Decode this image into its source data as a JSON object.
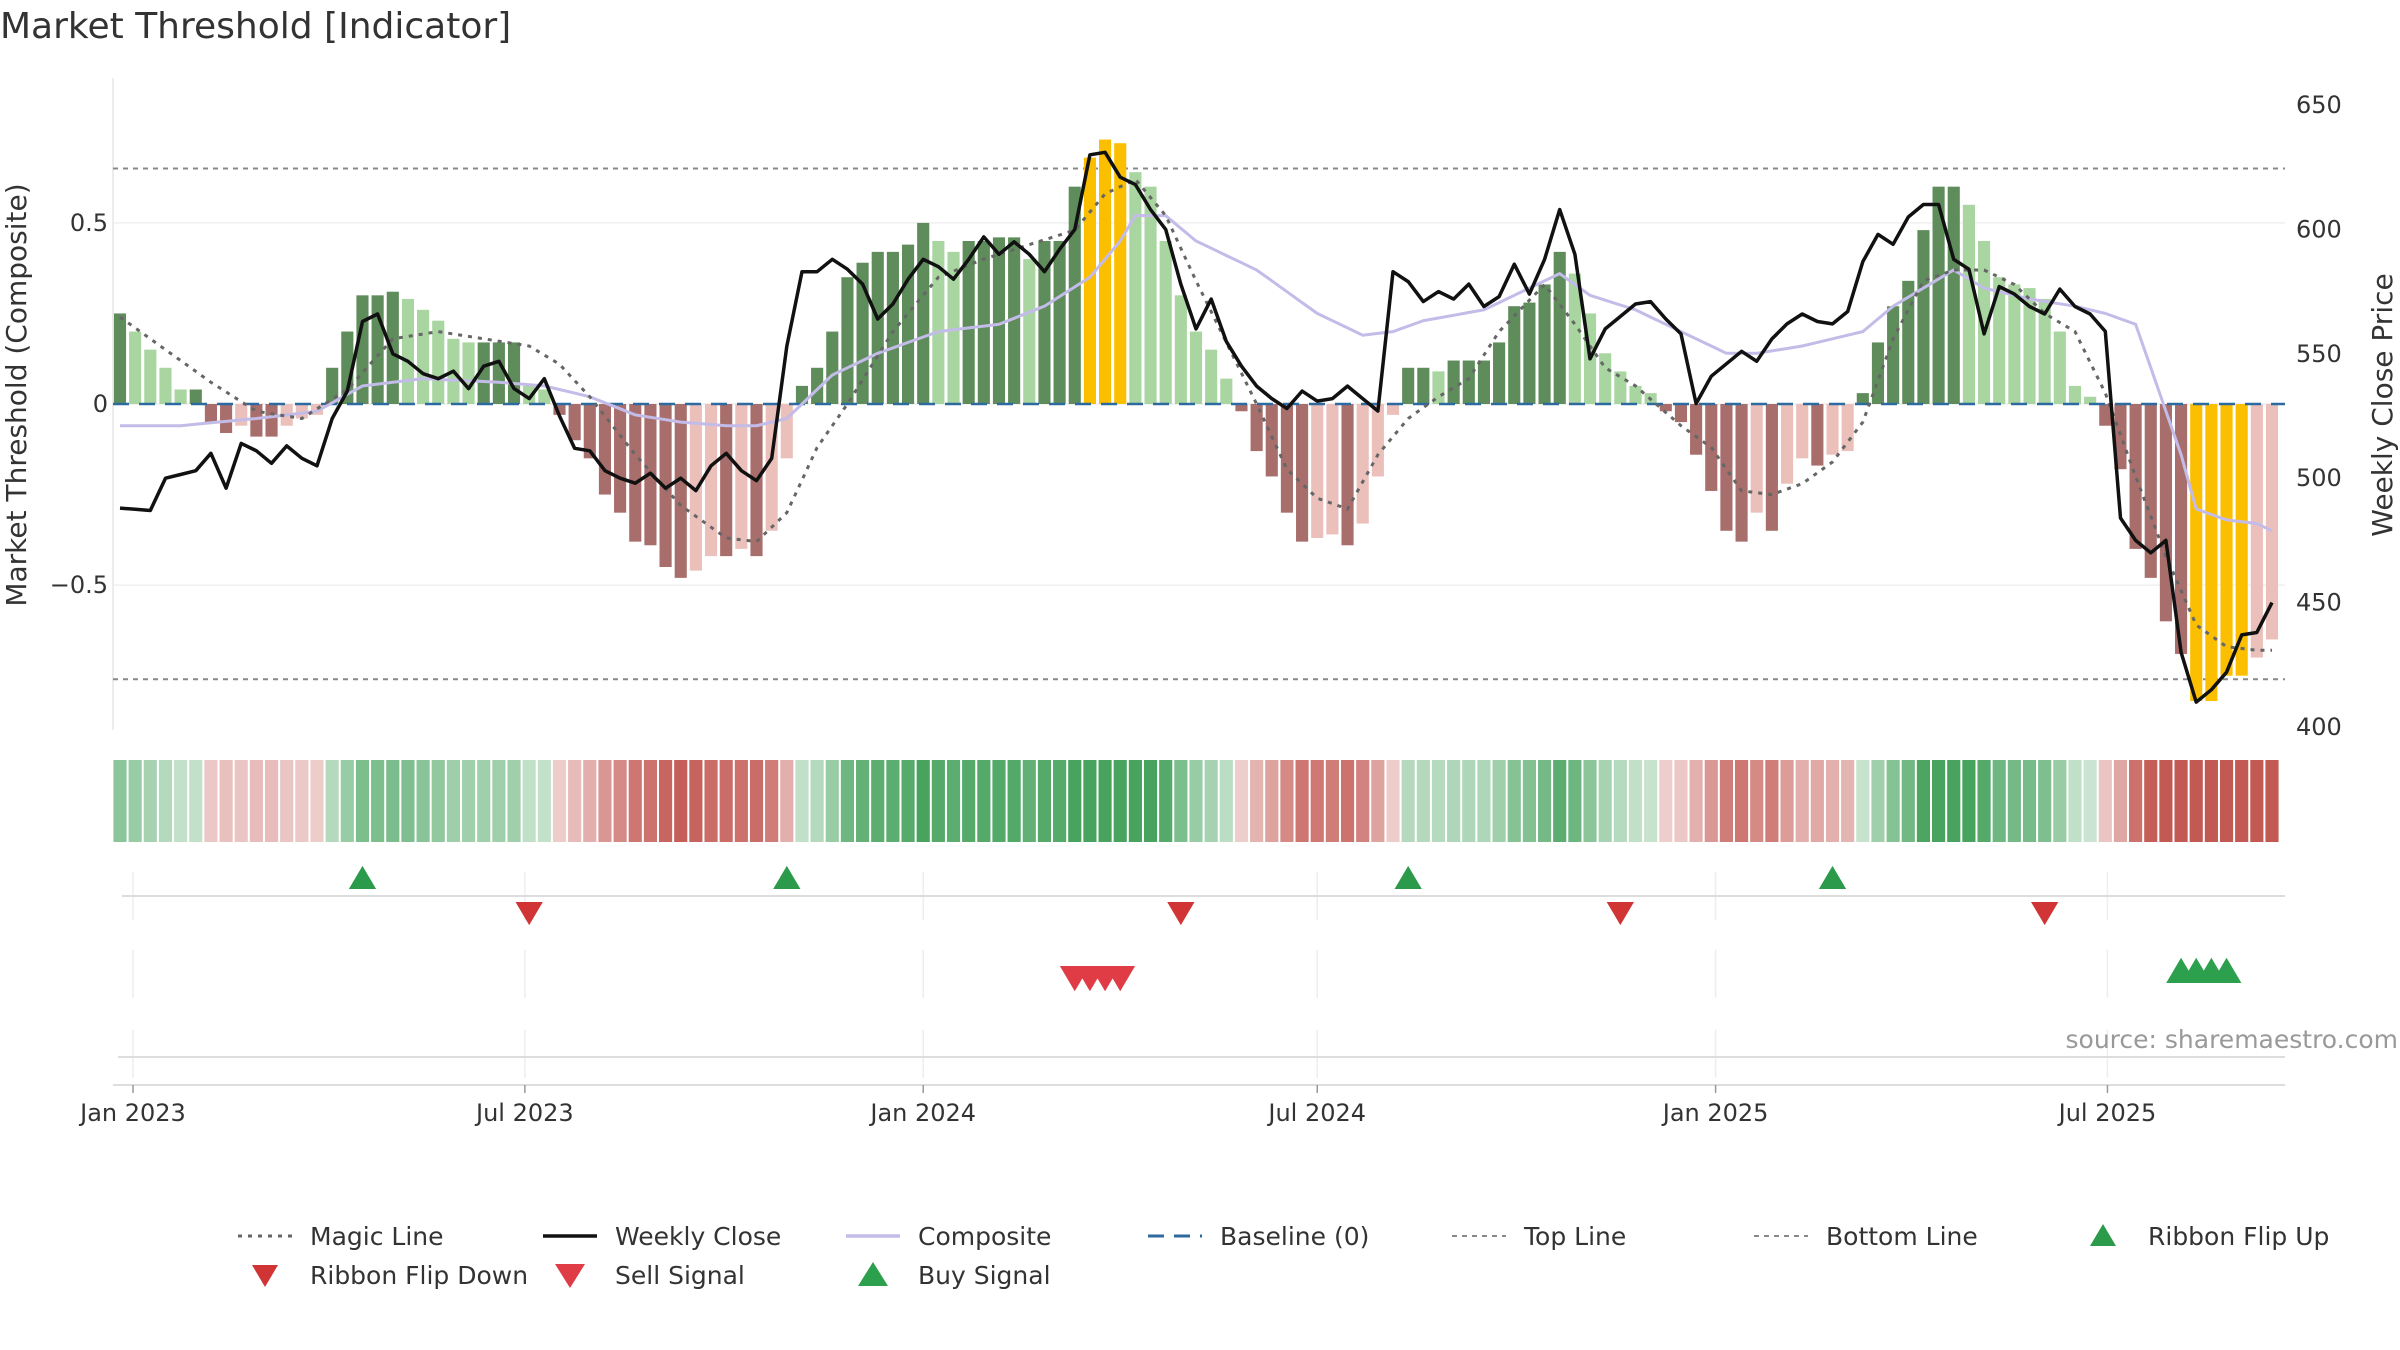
{
  "colors": {
    "pos_dark": "#5e8c5a",
    "pos_light": "#a8d5a0",
    "neg_dark": "#a86e6b",
    "neg_light": "#ebc0bb",
    "extreme": "#fbbf00",
    "composite": "#c3bbe8",
    "magic": "#666666",
    "close": "#111111",
    "baseline": "#2d6a9f",
    "guide": "#888888",
    "buy": "#2ca04c",
    "sell": "#e03c46",
    "flip_up": "#2b9a4a",
    "flip_down": "#d03434"
  },
  "chart_data": {
    "type": "bar",
    "title": "Market Threshold [Indicator]",
    "ylabel": "Market Threshold (Composite)",
    "y2label": "Weekly Close Price",
    "ylim": [
      -0.9,
      0.9
    ],
    "y2lim": [
      400,
      650
    ],
    "yticks": [
      0.5,
      0,
      -0.5
    ],
    "ytick_labels": [
      "0.5",
      "0",
      "−0.5"
    ],
    "y2ticks": [
      650,
      600,
      550,
      500,
      450,
      400
    ],
    "top_line": 0.65,
    "bottom_line": -0.76,
    "baseline": 0,
    "weeks": 143,
    "start_date": "2022-12-26",
    "x_ticks": [
      {
        "label": "Jan 2023",
        "date": "2023-01-01"
      },
      {
        "label": "Jul 2023",
        "date": "2023-07-01"
      },
      {
        "label": "Jan 2024",
        "date": "2024-01-01"
      },
      {
        "label": "Jul 2024",
        "date": "2024-07-01"
      },
      {
        "label": "Jan 2025",
        "date": "2025-01-01"
      },
      {
        "label": "Jul 2025",
        "date": "2025-07-01"
      }
    ],
    "histogram_anchors": [
      [
        0,
        0.25
      ],
      [
        1,
        0.2
      ],
      [
        2,
        0.15
      ],
      [
        3,
        0.1
      ],
      [
        4,
        0.04
      ],
      [
        5,
        0.04
      ],
      [
        6,
        -0.05
      ],
      [
        7,
        -0.08
      ],
      [
        8,
        -0.06
      ],
      [
        9,
        -0.09
      ],
      [
        10,
        -0.09
      ],
      [
        11,
        -0.06
      ],
      [
        12,
        -0.04
      ],
      [
        13,
        -0.03
      ],
      [
        14,
        0.1
      ],
      [
        15,
        0.2
      ],
      [
        16,
        0.3
      ],
      [
        17,
        0.3
      ],
      [
        18,
        0.31
      ],
      [
        19,
        0.29
      ],
      [
        20,
        0.26
      ],
      [
        21,
        0.23
      ],
      [
        22,
        0.18
      ],
      [
        23,
        0.17
      ],
      [
        24,
        0.17
      ],
      [
        25,
        0.17
      ],
      [
        26,
        0.17
      ],
      [
        27,
        0.05
      ],
      [
        28,
        0.04
      ],
      [
        29,
        -0.03
      ],
      [
        30,
        -0.1
      ],
      [
        31,
        -0.15
      ],
      [
        32,
        -0.25
      ],
      [
        33,
        -0.3
      ],
      [
        34,
        -0.38
      ],
      [
        35,
        -0.39
      ],
      [
        36,
        -0.45
      ],
      [
        37,
        -0.48
      ],
      [
        38,
        -0.46
      ],
      [
        39,
        -0.42
      ],
      [
        40,
        -0.42
      ],
      [
        41,
        -0.4
      ],
      [
        42,
        -0.42
      ],
      [
        43,
        -0.35
      ],
      [
        44,
        -0.15
      ],
      [
        45,
        0.05
      ],
      [
        46,
        0.1
      ],
      [
        47,
        0.2
      ],
      [
        48,
        0.35
      ],
      [
        49,
        0.39
      ],
      [
        50,
        0.42
      ],
      [
        51,
        0.42
      ],
      [
        52,
        0.44
      ],
      [
        53,
        0.5
      ],
      [
        54,
        0.45
      ],
      [
        55,
        0.42
      ],
      [
        56,
        0.45
      ],
      [
        57,
        0.45
      ],
      [
        58,
        0.46
      ],
      [
        59,
        0.46
      ],
      [
        60,
        0.4
      ],
      [
        61,
        0.45
      ],
      [
        62,
        0.45
      ],
      [
        63,
        0.6
      ],
      [
        64,
        0.68
      ],
      [
        65,
        0.73
      ],
      [
        66,
        0.72
      ],
      [
        67,
        0.64
      ],
      [
        68,
        0.6
      ],
      [
        69,
        0.45
      ],
      [
        70,
        0.3
      ],
      [
        71,
        0.2
      ],
      [
        72,
        0.15
      ],
      [
        73,
        0.07
      ],
      [
        74,
        -0.02
      ],
      [
        75,
        -0.13
      ],
      [
        76,
        -0.2
      ],
      [
        77,
        -0.3
      ],
      [
        78,
        -0.38
      ],
      [
        79,
        -0.37
      ],
      [
        80,
        -0.36
      ],
      [
        81,
        -0.39
      ],
      [
        82,
        -0.33
      ],
      [
        83,
        -0.2
      ],
      [
        84,
        -0.03
      ],
      [
        85,
        0.1
      ],
      [
        86,
        0.1
      ],
      [
        87,
        0.09
      ],
      [
        88,
        0.12
      ],
      [
        89,
        0.12
      ],
      [
        90,
        0.12
      ],
      [
        91,
        0.17
      ],
      [
        92,
        0.27
      ],
      [
        93,
        0.28
      ],
      [
        94,
        0.33
      ],
      [
        95,
        0.42
      ],
      [
        96,
        0.36
      ],
      [
        97,
        0.25
      ],
      [
        98,
        0.14
      ],
      [
        99,
        0.09
      ],
      [
        100,
        0.05
      ],
      [
        101,
        0.03
      ],
      [
        102,
        -0.02
      ],
      [
        103,
        -0.05
      ],
      [
        104,
        -0.14
      ],
      [
        105,
        -0.24
      ],
      [
        106,
        -0.35
      ],
      [
        107,
        -0.38
      ],
      [
        108,
        -0.3
      ],
      [
        109,
        -0.35
      ],
      [
        110,
        -0.22
      ],
      [
        111,
        -0.15
      ],
      [
        112,
        -0.17
      ],
      [
        113,
        -0.14
      ],
      [
        114,
        -0.13
      ],
      [
        115,
        0.03
      ],
      [
        116,
        0.17
      ],
      [
        117,
        0.27
      ],
      [
        118,
        0.34
      ],
      [
        119,
        0.48
      ],
      [
        120,
        0.6
      ],
      [
        121,
        0.6
      ],
      [
        122,
        0.55
      ],
      [
        123,
        0.45
      ],
      [
        124,
        0.35
      ],
      [
        125,
        0.33
      ],
      [
        126,
        0.32
      ],
      [
        127,
        0.29
      ],
      [
        128,
        0.2
      ],
      [
        129,
        0.05
      ],
      [
        130,
        0.02
      ],
      [
        131,
        -0.06
      ],
      [
        132,
        -0.18
      ],
      [
        133,
        -0.4
      ],
      [
        134,
        -0.48
      ],
      [
        135,
        -0.6
      ],
      [
        136,
        -0.69
      ],
      [
        137,
        -0.82
      ],
      [
        138,
        -0.82
      ],
      [
        139,
        -0.75
      ],
      [
        140,
        -0.75
      ],
      [
        141,
        -0.7
      ],
      [
        142,
        -0.65
      ]
    ],
    "extreme_weeks": [
      64,
      65,
      66,
      137,
      138,
      139,
      140
    ],
    "composite_anchors": [
      [
        0,
        -0.06
      ],
      [
        4,
        -0.06
      ],
      [
        9,
        -0.04
      ],
      [
        13,
        -0.02
      ],
      [
        16,
        0.05
      ],
      [
        20,
        0.07
      ],
      [
        25,
        0.06
      ],
      [
        28,
        0.05
      ],
      [
        31,
        0.02
      ],
      [
        34,
        -0.03
      ],
      [
        37,
        -0.05
      ],
      [
        40,
        -0.06
      ],
      [
        42,
        -0.06
      ],
      [
        44,
        -0.04
      ],
      [
        45,
        0.0
      ],
      [
        47,
        0.08
      ],
      [
        50,
        0.14
      ],
      [
        54,
        0.2
      ],
      [
        58,
        0.22
      ],
      [
        61,
        0.27
      ],
      [
        64,
        0.35
      ],
      [
        66,
        0.45
      ],
      [
        67,
        0.52
      ],
      [
        69,
        0.52
      ],
      [
        71,
        0.45
      ],
      [
        75,
        0.37
      ],
      [
        79,
        0.25
      ],
      [
        82,
        0.19
      ],
      [
        84,
        0.2
      ],
      [
        86,
        0.23
      ],
      [
        90,
        0.26
      ],
      [
        93,
        0.32
      ],
      [
        95,
        0.36
      ],
      [
        97,
        0.3
      ],
      [
        100,
        0.26
      ],
      [
        103,
        0.2
      ],
      [
        106,
        0.14
      ],
      [
        108,
        0.14
      ],
      [
        111,
        0.16
      ],
      [
        113,
        0.18
      ],
      [
        115,
        0.2
      ],
      [
        117,
        0.27
      ],
      [
        119,
        0.32
      ],
      [
        121,
        0.37
      ],
      [
        123,
        0.32
      ],
      [
        126,
        0.29
      ],
      [
        129,
        0.27
      ],
      [
        131,
        0.25
      ],
      [
        133,
        0.22
      ],
      [
        134,
        0.1
      ],
      [
        136,
        -0.14
      ],
      [
        137,
        -0.29
      ],
      [
        139,
        -0.32
      ],
      [
        141,
        -0.33
      ],
      [
        142,
        -0.35
      ]
    ],
    "magic_anchors": [
      [
        0,
        0.24
      ],
      [
        3,
        0.15
      ],
      [
        6,
        0.06
      ],
      [
        9,
        -0.02
      ],
      [
        12,
        -0.04
      ],
      [
        15,
        0.04
      ],
      [
        18,
        0.18
      ],
      [
        21,
        0.2
      ],
      [
        24,
        0.18
      ],
      [
        27,
        0.16
      ],
      [
        29,
        0.11
      ],
      [
        31,
        0.02
      ],
      [
        34,
        -0.14
      ],
      [
        37,
        -0.28
      ],
      [
        40,
        -0.37
      ],
      [
        42,
        -0.38
      ],
      [
        44,
        -0.3
      ],
      [
        46,
        -0.12
      ],
      [
        48,
        0.0
      ],
      [
        51,
        0.2
      ],
      [
        54,
        0.35
      ],
      [
        57,
        0.4
      ],
      [
        60,
        0.44
      ],
      [
        63,
        0.48
      ],
      [
        65,
        0.58
      ],
      [
        67,
        0.62
      ],
      [
        69,
        0.52
      ],
      [
        71,
        0.34
      ],
      [
        73,
        0.17
      ],
      [
        75,
        0.0
      ],
      [
        77,
        -0.18
      ],
      [
        79,
        -0.26
      ],
      [
        81,
        -0.29
      ],
      [
        83,
        -0.14
      ],
      [
        85,
        -0.04
      ],
      [
        87,
        0.02
      ],
      [
        89,
        0.07
      ],
      [
        91,
        0.2
      ],
      [
        94,
        0.33
      ],
      [
        96,
        0.22
      ],
      [
        98,
        0.1
      ],
      [
        100,
        0.05
      ],
      [
        103,
        -0.06
      ],
      [
        105,
        -0.12
      ],
      [
        107,
        -0.24
      ],
      [
        109,
        -0.25
      ],
      [
        111,
        -0.22
      ],
      [
        113,
        -0.16
      ],
      [
        115,
        -0.05
      ],
      [
        117,
        0.18
      ],
      [
        119,
        0.34
      ],
      [
        121,
        0.37
      ],
      [
        123,
        0.37
      ],
      [
        125,
        0.33
      ],
      [
        127,
        0.25
      ],
      [
        129,
        0.2
      ],
      [
        131,
        0.03
      ],
      [
        133,
        -0.2
      ],
      [
        135,
        -0.42
      ],
      [
        137,
        -0.61
      ],
      [
        139,
        -0.67
      ],
      [
        141,
        -0.68
      ],
      [
        142,
        -0.68
      ]
    ],
    "close_anchors": [
      [
        0,
        488
      ],
      [
        2,
        487
      ],
      [
        3,
        500
      ],
      [
        5,
        503
      ],
      [
        6,
        510
      ],
      [
        7,
        496
      ],
      [
        8,
        514
      ],
      [
        9,
        511
      ],
      [
        10,
        506
      ],
      [
        11,
        513
      ],
      [
        12,
        508
      ],
      [
        13,
        505
      ],
      [
        14,
        524
      ],
      [
        15,
        535
      ],
      [
        16,
        563
      ],
      [
        17,
        566
      ],
      [
        18,
        550
      ],
      [
        19,
        547
      ],
      [
        20,
        542
      ],
      [
        21,
        540
      ],
      [
        22,
        543
      ],
      [
        23,
        536
      ],
      [
        24,
        545
      ],
      [
        25,
        547
      ],
      [
        26,
        536
      ],
      [
        27,
        532
      ],
      [
        28,
        540
      ],
      [
        29,
        525
      ],
      [
        30,
        512
      ],
      [
        31,
        511
      ],
      [
        32,
        503
      ],
      [
        33,
        500
      ],
      [
        34,
        498
      ],
      [
        35,
        502
      ],
      [
        36,
        496
      ],
      [
        37,
        500
      ],
      [
        38,
        495
      ],
      [
        39,
        505
      ],
      [
        40,
        510
      ],
      [
        41,
        503
      ],
      [
        42,
        499
      ],
      [
        43,
        508
      ],
      [
        44,
        553
      ],
      [
        45,
        583
      ],
      [
        46,
        583
      ],
      [
        47,
        588
      ],
      [
        48,
        584
      ],
      [
        49,
        578
      ],
      [
        50,
        564
      ],
      [
        51,
        570
      ],
      [
        52,
        580
      ],
      [
        53,
        588
      ],
      [
        54,
        585
      ],
      [
        55,
        580
      ],
      [
        56,
        588
      ],
      [
        57,
        597
      ],
      [
        58,
        590
      ],
      [
        59,
        595
      ],
      [
        60,
        590
      ],
      [
        61,
        583
      ],
      [
        62,
        592
      ],
      [
        63,
        600
      ],
      [
        64,
        630
      ],
      [
        65,
        631
      ],
      [
        66,
        621
      ],
      [
        67,
        618
      ],
      [
        68,
        608
      ],
      [
        69,
        600
      ],
      [
        70,
        578
      ],
      [
        71,
        560
      ],
      [
        72,
        572
      ],
      [
        73,
        555
      ],
      [
        74,
        545
      ],
      [
        75,
        537
      ],
      [
        76,
        532
      ],
      [
        77,
        528
      ],
      [
        78,
        535
      ],
      [
        79,
        531
      ],
      [
        80,
        532
      ],
      [
        81,
        537
      ],
      [
        82,
        532
      ],
      [
        83,
        527
      ],
      [
        84,
        583
      ],
      [
        85,
        579
      ],
      [
        86,
        571
      ],
      [
        87,
        575
      ],
      [
        88,
        572
      ],
      [
        89,
        578
      ],
      [
        90,
        569
      ],
      [
        91,
        573
      ],
      [
        92,
        586
      ],
      [
        93,
        574
      ],
      [
        94,
        588
      ],
      [
        95,
        608
      ],
      [
        96,
        590
      ],
      [
        97,
        548
      ],
      [
        98,
        560
      ],
      [
        99,
        565
      ],
      [
        100,
        570
      ],
      [
        101,
        571
      ],
      [
        102,
        564
      ],
      [
        103,
        558
      ],
      [
        104,
        530
      ],
      [
        105,
        541
      ],
      [
        106,
        546
      ],
      [
        107,
        551
      ],
      [
        108,
        547
      ],
      [
        109,
        556
      ],
      [
        110,
        562
      ],
      [
        111,
        566
      ],
      [
        112,
        563
      ],
      [
        113,
        562
      ],
      [
        114,
        567
      ],
      [
        115,
        587
      ],
      [
        116,
        598
      ],
      [
        117,
        594
      ],
      [
        118,
        605
      ],
      [
        119,
        610
      ],
      [
        120,
        610
      ],
      [
        121,
        588
      ],
      [
        122,
        584
      ],
      [
        123,
        558
      ],
      [
        124,
        577
      ],
      [
        125,
        574
      ],
      [
        126,
        569
      ],
      [
        127,
        566
      ],
      [
        128,
        576
      ],
      [
        129,
        569
      ],
      [
        130,
        566
      ],
      [
        131,
        559
      ],
      [
        132,
        484
      ],
      [
        133,
        475
      ],
      [
        134,
        470
      ],
      [
        135,
        475
      ],
      [
        136,
        430
      ],
      [
        137,
        410
      ],
      [
        138,
        415
      ],
      [
        139,
        422
      ],
      [
        140,
        437
      ],
      [
        141,
        438
      ],
      [
        142,
        450
      ]
    ],
    "ribbon_flip_up_weeks": [
      16,
      44,
      85,
      113
    ],
    "ribbon_flip_down_weeks": [
      27,
      70,
      99,
      127
    ],
    "sell_signal_weeks": [
      63,
      64,
      65,
      66
    ],
    "buy_signal_weeks": [
      136,
      137,
      138,
      139
    ],
    "legend": [
      {
        "label": "Magic Line",
        "style": "dotted-line"
      },
      {
        "label": "Weekly Close",
        "style": "line"
      },
      {
        "label": "Composite",
        "style": "line-light"
      },
      {
        "label": "Baseline (0)",
        "style": "dashed-line"
      },
      {
        "label": "Top Line",
        "style": "thin-dotted"
      },
      {
        "label": "Bottom Line",
        "style": "thin-dotted"
      },
      {
        "label": "Ribbon Flip Up",
        "style": "triangle-up"
      },
      {
        "label": "Ribbon Flip Down",
        "style": "triangle-down"
      },
      {
        "label": "Sell Signal",
        "style": "triangle-down-large"
      },
      {
        "label": "Buy Signal",
        "style": "triangle-up-large"
      }
    ],
    "source": "source: sharemaestro.com"
  }
}
